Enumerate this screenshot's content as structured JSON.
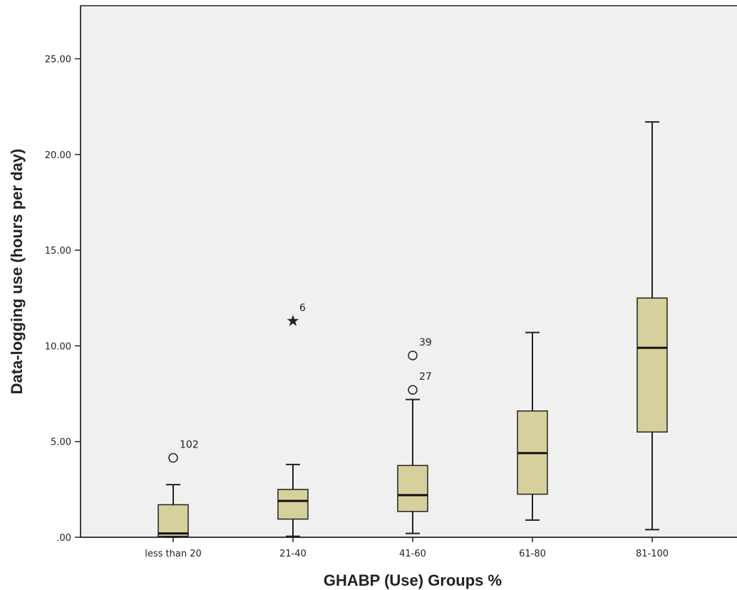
{
  "chart_data": {
    "type": "boxplot",
    "xlabel": "GHABP (Use) Groups %",
    "ylabel": "Data-logging use (hours per day)",
    "ylim": [
      0,
      27.5
    ],
    "yticks": [
      0,
      5,
      10,
      15,
      20,
      25
    ],
    "ytick_labels": [
      ".00",
      "5.00",
      "10.00",
      "15.00",
      "20.00",
      "25.00"
    ],
    "categories": [
      "less than 20",
      "21-40",
      "41-60",
      "61-80",
      "81-100"
    ],
    "box_color": "#d6d09c",
    "plot_background": "#f0f0f0",
    "grid": false,
    "boxes": [
      {
        "category": "less than 20",
        "whisker_low": 0.0,
        "q1": 0.05,
        "median": 0.2,
        "q3": 1.7,
        "whisker_high": 2.75,
        "outliers": [
          {
            "value": 4.15,
            "label": "102",
            "marker": "circle"
          }
        ]
      },
      {
        "category": "21-40",
        "whisker_low": 0.05,
        "q1": 0.95,
        "median": 1.9,
        "q3": 2.5,
        "whisker_high": 3.8,
        "outliers": [
          {
            "value": 11.3,
            "label": "6",
            "marker": "star"
          }
        ]
      },
      {
        "category": "41-60",
        "whisker_low": 0.2,
        "q1": 1.35,
        "median": 2.2,
        "q3": 3.75,
        "whisker_high": 7.2,
        "outliers": [
          {
            "value": 9.5,
            "label": "39",
            "marker": "circle"
          },
          {
            "value": 7.7,
            "label": "27",
            "marker": "circle"
          }
        ]
      },
      {
        "category": "61-80",
        "whisker_low": 0.9,
        "q1": 2.25,
        "median": 4.4,
        "q3": 6.6,
        "whisker_high": 10.7,
        "outliers": []
      },
      {
        "category": "81-100",
        "whisker_low": 0.4,
        "q1": 5.5,
        "median": 9.9,
        "q3": 12.5,
        "whisker_high": 21.7,
        "outliers": []
      }
    ]
  }
}
